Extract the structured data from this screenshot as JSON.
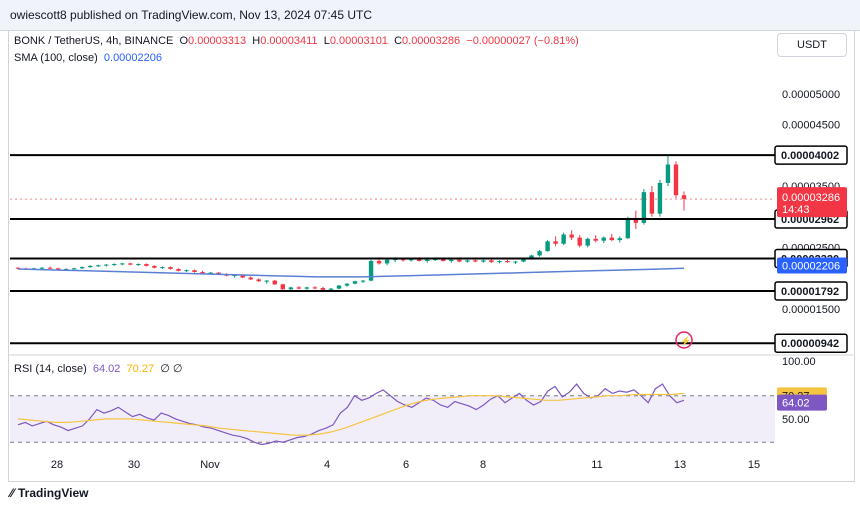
{
  "header": {
    "text": "owiescott8 published on TradingView.com, Nov 13, 2024 07:45 UTC"
  },
  "legend": {
    "symbol": "BONK / TetherUS, 4h, BINANCE",
    "o_label": "O",
    "o": "0.00003313",
    "h_label": "H",
    "h": "0.00003411",
    "l_label": "L",
    "l": "0.00003101",
    "c_label": "C",
    "c": "0.00003286",
    "change": "−0.00000027 (−0.81%)",
    "sma_label": "SMA (100, close)",
    "sma": "0.00002206",
    "rsi_label": "RSI (14, close)",
    "rsi": "64.02",
    "rsi_ma": "70.27",
    "rsi_extra": "∅ ∅"
  },
  "currency_button": "USDT",
  "countdown": "14:43",
  "footer": {
    "brand": "TradingView",
    "logo": "tv-logo-icon"
  },
  "colors": {
    "up": "#089981",
    "down": "#f23645",
    "sma": "#5b7fd6",
    "rsi": "#7e57c2",
    "rsi_ma": "#f5c542",
    "level": "#000000"
  },
  "chart_data": [
    {
      "type": "candlestick",
      "title": "BONK / TetherUS, 4h, BINANCE",
      "x_ticks": [
        "28",
        "30",
        "Nov",
        "4",
        "6",
        "8",
        "11",
        "13",
        "15"
      ],
      "y_ticks": [
        "0.00005000",
        "0.00004500",
        "0.00003500",
        "0.00002500",
        "0.00001500"
      ],
      "ylim": [
        7.5e-06,
        5.55e-05
      ],
      "levels": [
        "0.00004002",
        "0.00002962",
        "0.00002320",
        "0.00001792",
        "0.00000942"
      ],
      "last_price": "0.00003286",
      "sma_label": "0.00002206",
      "candles": [
        [
          2.17e-05,
          2.18e-05,
          2.15e-05,
          2.16e-05
        ],
        [
          2.16e-05,
          2.17e-05,
          2.14e-05,
          2.15e-05
        ],
        [
          2.15e-05,
          2.17e-05,
          2.14e-05,
          2.16e-05
        ],
        [
          2.16e-05,
          2.18e-05,
          2.15e-05,
          2.17e-05
        ],
        [
          2.17e-05,
          2.19e-05,
          2.15e-05,
          2.16e-05
        ],
        [
          2.16e-05,
          2.17e-05,
          2.13e-05,
          2.14e-05
        ],
        [
          2.14e-05,
          2.16e-05,
          2.12e-05,
          2.15e-05
        ],
        [
          2.15e-05,
          2.17e-05,
          2.14e-05,
          2.16e-05
        ],
        [
          2.16e-05,
          2.19e-05,
          2.15e-05,
          2.18e-05
        ],
        [
          2.18e-05,
          2.21e-05,
          2.17e-05,
          2.2e-05
        ],
        [
          2.2e-05,
          2.22e-05,
          2.18e-05,
          2.21e-05
        ],
        [
          2.21e-05,
          2.23e-05,
          2.19e-05,
          2.22e-05
        ],
        [
          2.22e-05,
          2.24e-05,
          2.2e-05,
          2.23e-05
        ],
        [
          2.23e-05,
          2.25e-05,
          2.21e-05,
          2.24e-05
        ],
        [
          2.24e-05,
          2.25e-05,
          2.21e-05,
          2.22e-05
        ],
        [
          2.22e-05,
          2.24e-05,
          2.2e-05,
          2.23e-05
        ],
        [
          2.23e-05,
          2.24e-05,
          2.19e-05,
          2.2e-05
        ],
        [
          2.2e-05,
          2.21e-05,
          2.16e-05,
          2.17e-05
        ],
        [
          2.17e-05,
          2.19e-05,
          2.15e-05,
          2.18e-05
        ],
        [
          2.18e-05,
          2.19e-05,
          2.14e-05,
          2.15e-05
        ],
        [
          2.15e-05,
          2.16e-05,
          2.11e-05,
          2.12e-05
        ],
        [
          2.12e-05,
          2.14e-05,
          2.1e-05,
          2.13e-05
        ],
        [
          2.13e-05,
          2.14e-05,
          2.09e-05,
          2.1e-05
        ],
        [
          2.1e-05,
          2.12e-05,
          2.07e-05,
          2.08e-05
        ],
        [
          2.08e-05,
          2.1e-05,
          2.06e-05,
          2.09e-05
        ],
        [
          2.09e-05,
          2.1e-05,
          2.05e-05,
          2.06e-05
        ],
        [
          2.06e-05,
          2.08e-05,
          2.03e-05,
          2.04e-05
        ],
        [
          2.04e-05,
          2.06e-05,
          2.01e-05,
          2.05e-05
        ],
        [
          2.05e-05,
          2.06e-05,
          2e-05,
          2.01e-05
        ],
        [
          2.01e-05,
          2.03e-05,
          1.97e-05,
          1.98e-05
        ],
        [
          1.98e-05,
          2e-05,
          1.94e-05,
          1.95e-05
        ],
        [
          1.95e-05,
          1.97e-05,
          1.91e-05,
          1.96e-05
        ],
        [
          1.96e-05,
          1.97e-05,
          1.89e-05,
          1.9e-05
        ],
        [
          1.9e-05,
          1.91e-05,
          1.8e-05,
          1.82e-05
        ],
        [
          1.82e-05,
          1.86e-05,
          1.79e-05,
          1.85e-05
        ],
        [
          1.85e-05,
          1.87e-05,
          1.82e-05,
          1.83e-05
        ],
        [
          1.83e-05,
          1.86e-05,
          1.81e-05,
          1.85e-05
        ],
        [
          1.85e-05,
          1.87e-05,
          1.82e-05,
          1.84e-05
        ],
        [
          1.84e-05,
          1.86e-05,
          1.8e-05,
          1.81e-05
        ],
        [
          1.81e-05,
          1.84e-05,
          1.79e-05,
          1.83e-05
        ],
        [
          1.83e-05,
          1.89e-05,
          1.82e-05,
          1.88e-05
        ],
        [
          1.88e-05,
          1.92e-05,
          1.86e-05,
          1.91e-05
        ],
        [
          1.91e-05,
          1.96e-05,
          1.9e-05,
          1.95e-05
        ],
        [
          1.95e-05,
          1.97e-05,
          1.92e-05,
          1.96e-05
        ],
        [
          1.96e-05,
          2.3e-05,
          1.95e-05,
          2.28e-05
        ],
        [
          2.28e-05,
          2.34e-05,
          2.22e-05,
          2.24e-05
        ],
        [
          2.24e-05,
          2.32e-05,
          2.21e-05,
          2.3e-05
        ],
        [
          2.3e-05,
          2.34e-05,
          2.26e-05,
          2.31e-05
        ],
        [
          2.31e-05,
          2.33e-05,
          2.27e-05,
          2.29e-05
        ],
        [
          2.29e-05,
          2.33e-05,
          2.27e-05,
          2.32e-05
        ],
        [
          2.32e-05,
          2.34e-05,
          2.27e-05,
          2.28e-05
        ],
        [
          2.28e-05,
          2.31e-05,
          2.25e-05,
          2.3e-05
        ],
        [
          2.3e-05,
          2.33e-05,
          2.28e-05,
          2.31e-05
        ],
        [
          2.31e-05,
          2.33e-05,
          2.27e-05,
          2.28e-05
        ],
        [
          2.28e-05,
          2.31e-05,
          2.25e-05,
          2.3e-05
        ],
        [
          2.3e-05,
          2.32e-05,
          2.26e-05,
          2.27e-05
        ],
        [
          2.27e-05,
          2.3e-05,
          2.25e-05,
          2.29e-05
        ],
        [
          2.29e-05,
          2.31e-05,
          2.26e-05,
          2.27e-05
        ],
        [
          2.27e-05,
          2.3e-05,
          2.25e-05,
          2.29e-05
        ],
        [
          2.29e-05,
          2.31e-05,
          2.25e-05,
          2.26e-05
        ],
        [
          2.26e-05,
          2.29e-05,
          2.24e-05,
          2.28e-05
        ],
        [
          2.28e-05,
          2.3e-05,
          2.25e-05,
          2.26e-05
        ],
        [
          2.26e-05,
          2.28e-05,
          2.23e-05,
          2.27e-05
        ],
        [
          2.27e-05,
          2.32e-05,
          2.26e-05,
          2.31e-05
        ],
        [
          2.31e-05,
          2.38e-05,
          2.3e-05,
          2.37e-05
        ],
        [
          2.37e-05,
          2.46e-05,
          2.35e-05,
          2.44e-05
        ],
        [
          2.44e-05,
          2.62e-05,
          2.43e-05,
          2.6e-05
        ],
        [
          2.6e-05,
          2.68e-05,
          2.52e-05,
          2.56e-05
        ],
        [
          2.56e-05,
          2.74e-05,
          2.54e-05,
          2.71e-05
        ],
        [
          2.71e-05,
          2.78e-05,
          2.62e-05,
          2.66e-05
        ],
        [
          2.66e-05,
          2.7e-05,
          2.5e-05,
          2.53e-05
        ],
        [
          2.53e-05,
          2.66e-05,
          2.5e-05,
          2.64e-05
        ],
        [
          2.64e-05,
          2.7e-05,
          2.58e-05,
          2.61e-05
        ],
        [
          2.61e-05,
          2.68e-05,
          2.57e-05,
          2.66e-05
        ],
        [
          2.66e-05,
          2.72e-05,
          2.6e-05,
          2.62e-05
        ],
        [
          2.62e-05,
          2.68e-05,
          2.58e-05,
          2.65e-05
        ],
        [
          2.65e-05,
          3e-05,
          2.64e-05,
          2.98e-05
        ],
        [
          2.98e-05,
          3.1e-05,
          2.8e-05,
          2.9e-05
        ],
        [
          2.9e-05,
          3.45e-05,
          2.87e-05,
          3.4e-05
        ],
        [
          3.4e-05,
          3.5e-05,
          3e-05,
          3.05e-05
        ],
        [
          3.05e-05,
          3.6e-05,
          3e-05,
          3.55e-05
        ],
        [
          3.55e-05,
          4e-05,
          3.5e-05,
          3.85e-05
        ],
        [
          3.85e-05,
          3.9e-05,
          3.3e-05,
          3.35e-05
        ],
        [
          3.35e-05,
          3.41e-05,
          3.1e-05,
          3.29e-05
        ]
      ],
      "sma_values": [
        2.15e-05,
        2.14e-05,
        2.13e-05,
        2.12e-05,
        2.11e-05,
        2.1e-05,
        2.09e-05,
        2.08e-05,
        2.07e-05,
        2.06e-05,
        2.05e-05,
        2.04e-05,
        2.03e-05,
        2.02e-05,
        2.02e-05,
        2.02e-05,
        2.03e-05,
        2.04e-05,
        2.05e-05,
        2.06e-05,
        2.07e-05,
        2.08e-05,
        2.09e-05,
        2.1e-05,
        2.11e-05,
        2.12e-05,
        2.13e-05,
        2.14e-05,
        2.15e-05,
        2.16e-05
      ]
    },
    {
      "type": "line",
      "title": "RSI (14, close)",
      "y_ticks": [
        "100.00",
        "50.00"
      ],
      "ylim": [
        25,
        105
      ],
      "band": [
        30,
        70
      ],
      "rsi_values": [
        45,
        47,
        44,
        46,
        48,
        45,
        43,
        40,
        42,
        44,
        50,
        58,
        55,
        57,
        60,
        56,
        52,
        54,
        51,
        49,
        55,
        53,
        50,
        48,
        46,
        45,
        43,
        42,
        40,
        38,
        36,
        35,
        33,
        30,
        28,
        29,
        31,
        30,
        32,
        34,
        35,
        37,
        40,
        42,
        45,
        55,
        60,
        70,
        66,
        68,
        72,
        75,
        70,
        65,
        62,
        60,
        64,
        68,
        66,
        62,
        60,
        65,
        63,
        61,
        58,
        62,
        67,
        70,
        64,
        68,
        72,
        66,
        62,
        65,
        74,
        78,
        69,
        73,
        80,
        72,
        68,
        70,
        76,
        72,
        74,
        73,
        75,
        70,
        64,
        76,
        80,
        70,
        64,
        66
      ],
      "rsi_ma_values": [
        50,
        49,
        48,
        47,
        47,
        48,
        49,
        50,
        50,
        50,
        49,
        48,
        47,
        46,
        45,
        44,
        42,
        41,
        40,
        39,
        38,
        37,
        36,
        36,
        37,
        39,
        42,
        46,
        50,
        54,
        58,
        62,
        65,
        67,
        68,
        69,
        70,
        70,
        70,
        69,
        68,
        67,
        66,
        66,
        67,
        68,
        69,
        70,
        70,
        71,
        71,
        71,
        71,
        72
      ],
      "labels": {
        "rsi": "64.02",
        "ma": "70.27"
      }
    }
  ]
}
